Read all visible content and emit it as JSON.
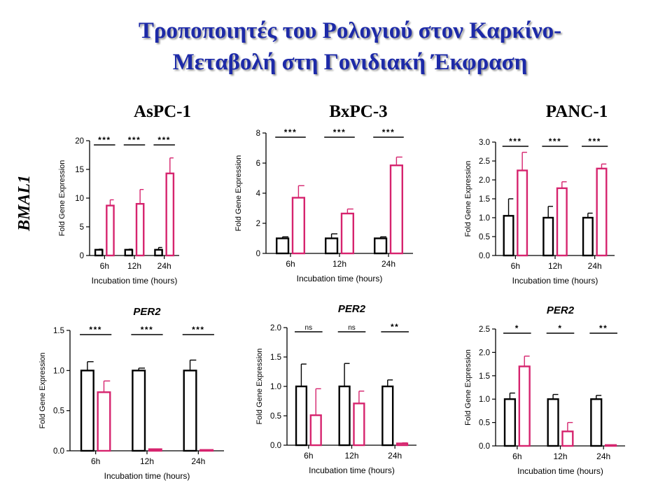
{
  "slide": {
    "title_line1": "Τροποποιητές του Ρολογιού στον Καρκίνο-",
    "title_line2": "Μεταβολή στη Γονιδιακή Έκφραση"
  },
  "columns": [
    "AsPC-1",
    "BxPC-3",
    "PANC-1"
  ],
  "row_label": "BMAL1",
  "colors": {
    "control": "#000000",
    "treated": "#d6246e"
  },
  "chart_data": [
    {
      "type": "bar",
      "gene": "BMAL1",
      "cell_line": "AsPC-1",
      "title": "",
      "xlabel": "Incubation time (hours)",
      "ylabel": "Fold Gene Expression",
      "categories": [
        "6h",
        "12h",
        "24h"
      ],
      "ylim": [
        0,
        20
      ],
      "yticks": [
        "0",
        "5",
        "10",
        "15",
        "20"
      ],
      "series": [
        {
          "values": [
            1.0,
            1.0,
            1.0
          ],
          "errors": [
            0.1,
            0.1,
            0.4
          ]
        },
        {
          "values": [
            8.7,
            9.0,
            14.3
          ],
          "errors": [
            1.0,
            2.5,
            2.7
          ]
        }
      ],
      "significance": [
        "***",
        "***",
        "***"
      ]
    },
    {
      "type": "bar",
      "gene": "BMAL1",
      "cell_line": "BxPC-3",
      "title": "",
      "xlabel": "Incubation time (hours)",
      "ylabel": "Fold Gene Expression",
      "categories": [
        "6h",
        "12h",
        "24h"
      ],
      "ylim": [
        0,
        8
      ],
      "yticks": [
        "0",
        "2",
        "4",
        "6",
        "8"
      ],
      "series": [
        {
          "values": [
            1.0,
            1.0,
            1.0
          ],
          "errors": [
            0.1,
            0.3,
            0.1
          ]
        },
        {
          "values": [
            3.7,
            2.65,
            5.85
          ],
          "errors": [
            0.8,
            0.3,
            0.55
          ]
        }
      ],
      "significance": [
        "***",
        "***",
        "***"
      ]
    },
    {
      "type": "bar",
      "gene": "BMAL1",
      "cell_line": "PANC-1",
      "title": "",
      "xlabel": "Incubation time (hours)",
      "ylabel": "Fold Gene Expression",
      "categories": [
        "6h",
        "12h",
        "24h"
      ],
      "ylim": [
        0,
        3
      ],
      "yticks": [
        "0.0",
        "0.5",
        "1.0",
        "1.5",
        "2.0",
        "2.5",
        "3.0"
      ],
      "series": [
        {
          "values": [
            1.05,
            1.0,
            1.0
          ],
          "errors": [
            0.45,
            0.3,
            0.12
          ]
        },
        {
          "values": [
            2.25,
            1.78,
            2.3
          ],
          "errors": [
            0.48,
            0.17,
            0.12
          ]
        }
      ],
      "significance": [
        "***",
        "***",
        "***"
      ]
    },
    {
      "type": "bar",
      "gene": "PER2",
      "cell_line": "AsPC-1",
      "title": "PER2",
      "xlabel": "Incubation time (hours)",
      "ylabel": "Fold Gene Expression",
      "categories": [
        "6h",
        "12h",
        "24h"
      ],
      "ylim": [
        0,
        1.5
      ],
      "yticks": [
        "0.0",
        "0.5",
        "1.0",
        "1.5"
      ],
      "series": [
        {
          "values": [
            1.0,
            1.0,
            1.0
          ],
          "errors": [
            0.11,
            0.03,
            0.13
          ]
        },
        {
          "values": [
            0.73,
            0.02,
            0.01
          ],
          "errors": [
            0.14,
            0.005,
            0.003
          ]
        }
      ],
      "significance": [
        "***",
        "***",
        "***"
      ]
    },
    {
      "type": "bar",
      "gene": "PER2",
      "cell_line": "BxPC-3",
      "title": "PER2",
      "xlabel": "Incubation time (hours)",
      "ylabel": "Fold Gene Expression",
      "categories": [
        "6h",
        "12h",
        "24h"
      ],
      "ylim": [
        0,
        2.0
      ],
      "yticks": [
        "0.0",
        "0.5",
        "1.0",
        "1.5",
        "2.0"
      ],
      "series": [
        {
          "values": [
            1.0,
            1.0,
            1.0
          ],
          "errors": [
            0.38,
            0.39,
            0.11
          ]
        },
        {
          "values": [
            0.51,
            0.71,
            0.03
          ],
          "errors": [
            0.45,
            0.21,
            0.01
          ]
        }
      ],
      "significance": [
        "ns",
        "ns",
        "**"
      ]
    },
    {
      "type": "bar",
      "gene": "PER2",
      "cell_line": "PANC-1",
      "title": "PER2",
      "xlabel": "Incubation time (hours)",
      "ylabel": "Fold Gene Expression",
      "categories": [
        "6h",
        "12h",
        "24h"
      ],
      "ylim": [
        0,
        2.5
      ],
      "yticks": [
        "0.0",
        "0.5",
        "1.0",
        "1.5",
        "2.0",
        "2.5"
      ],
      "series": [
        {
          "values": [
            1.0,
            1.0,
            1.0
          ],
          "errors": [
            0.13,
            0.1,
            0.08
          ]
        },
        {
          "values": [
            1.7,
            0.31,
            0.01
          ],
          "errors": [
            0.22,
            0.19,
            0.005
          ]
        }
      ],
      "significance": [
        "*",
        "*",
        "**"
      ]
    }
  ]
}
